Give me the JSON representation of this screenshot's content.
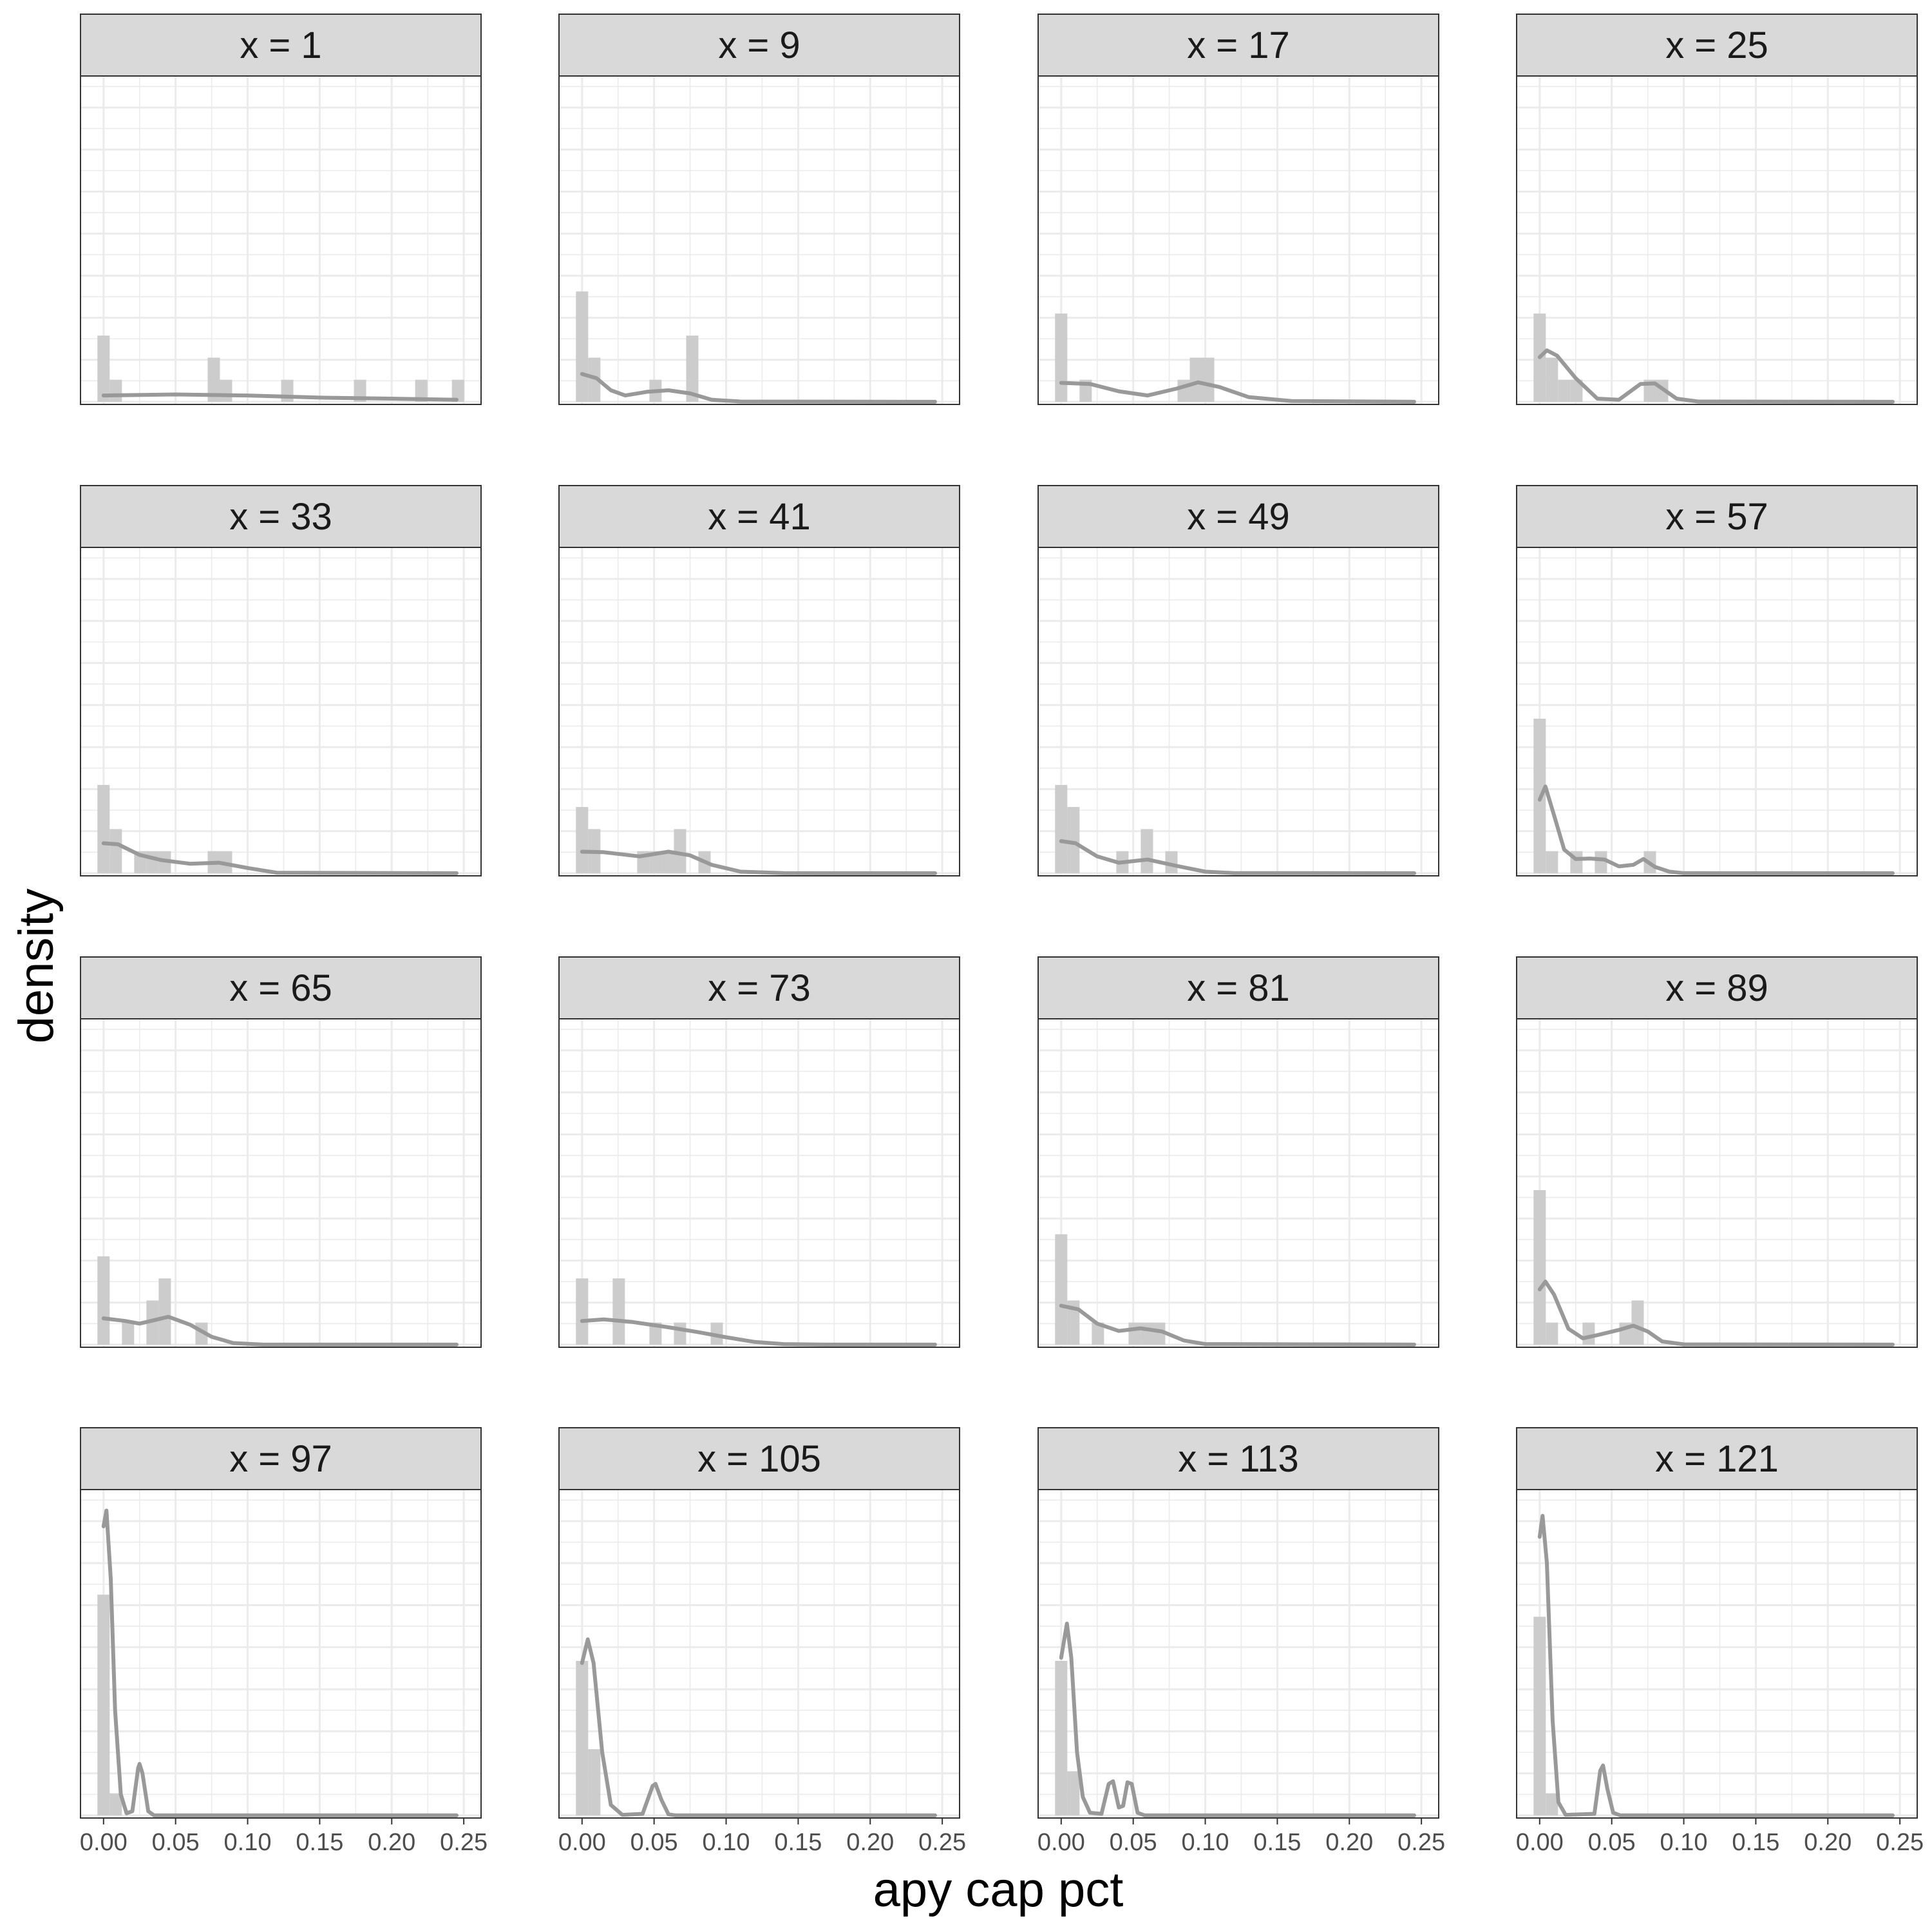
{
  "chart_data": {
    "type": "histogram",
    "xlabel": "apy cap pct",
    "ylabel": "density",
    "xlim": [
      -0.016,
      0.262
    ],
    "ylim": [
      -0.5,
      62
    ],
    "x_ticks": [
      0.0,
      0.05,
      0.1,
      0.15,
      0.2,
      0.25
    ],
    "x_tick_labels": [
      "0.00",
      "0.05",
      "0.10",
      "0.15",
      "0.20",
      "0.25"
    ],
    "y_tick_labels": [],
    "grid": true,
    "bin_width": 0.0085,
    "colors": {
      "bar": "#cccccc",
      "density_line": "#999999",
      "strip_fill": "#d9d9d9",
      "panel_border": "#333333",
      "grid": "#ebebeb"
    },
    "panels": [
      {
        "label": "x = 1",
        "bars": [
          [
            0.0,
            12.6
          ],
          [
            0.0085,
            4.2
          ],
          [
            0.0765,
            8.4
          ],
          [
            0.085,
            4.2
          ],
          [
            0.1275,
            4.2
          ],
          [
            0.178,
            4.2
          ],
          [
            0.2205,
            4.2
          ],
          [
            0.246,
            4.2
          ]
        ],
        "density": [
          [
            0.0,
            1.2
          ],
          [
            0.05,
            1.4
          ],
          [
            0.1,
            1.2
          ],
          [
            0.15,
            0.8
          ],
          [
            0.2,
            0.6
          ],
          [
            0.245,
            0.4
          ]
        ]
      },
      {
        "label": "x = 9",
        "bars": [
          [
            0.0,
            21.0
          ],
          [
            0.0085,
            8.4
          ],
          [
            0.051,
            4.2
          ],
          [
            0.0765,
            12.6
          ]
        ],
        "density": [
          [
            0.0,
            5.3
          ],
          [
            0.01,
            4.5
          ],
          [
            0.02,
            2.2
          ],
          [
            0.03,
            1.2
          ],
          [
            0.045,
            1.9
          ],
          [
            0.06,
            2.2
          ],
          [
            0.075,
            1.6
          ],
          [
            0.09,
            0.4
          ],
          [
            0.11,
            0.05
          ],
          [
            0.245,
            0.0
          ]
        ]
      },
      {
        "label": "x = 17",
        "bars": [
          [
            0.0,
            16.8
          ],
          [
            0.017,
            4.2
          ],
          [
            0.085,
            4.2
          ],
          [
            0.0935,
            8.4
          ],
          [
            0.102,
            8.4
          ]
        ],
        "density": [
          [
            0.0,
            3.6
          ],
          [
            0.02,
            3.4
          ],
          [
            0.04,
            2.0
          ],
          [
            0.06,
            1.2
          ],
          [
            0.08,
            2.5
          ],
          [
            0.095,
            3.7
          ],
          [
            0.11,
            2.8
          ],
          [
            0.13,
            0.9
          ],
          [
            0.16,
            0.15
          ],
          [
            0.245,
            0.0
          ]
        ]
      },
      {
        "label": "x = 25",
        "bars": [
          [
            0.0,
            16.8
          ],
          [
            0.0085,
            8.4
          ],
          [
            0.017,
            4.2
          ],
          [
            0.0255,
            4.2
          ],
          [
            0.0765,
            4.2
          ],
          [
            0.085,
            4.2
          ]
        ],
        "density": [
          [
            0.0,
            8.5
          ],
          [
            0.005,
            9.8
          ],
          [
            0.012,
            8.8
          ],
          [
            0.025,
            4.5
          ],
          [
            0.04,
            0.6
          ],
          [
            0.055,
            0.4
          ],
          [
            0.07,
            3.4
          ],
          [
            0.08,
            3.5
          ],
          [
            0.095,
            0.6
          ],
          [
            0.11,
            0.05
          ],
          [
            0.245,
            0.0
          ]
        ]
      },
      {
        "label": "x = 33",
        "bars": [
          [
            0.0,
            16.8
          ],
          [
            0.0085,
            8.4
          ],
          [
            0.0255,
            4.2
          ],
          [
            0.034,
            4.2
          ],
          [
            0.0425,
            4.2
          ],
          [
            0.0765,
            4.2
          ],
          [
            0.085,
            4.2
          ]
        ],
        "density": [
          [
            0.0,
            5.7
          ],
          [
            0.01,
            5.5
          ],
          [
            0.025,
            3.5
          ],
          [
            0.04,
            2.5
          ],
          [
            0.06,
            1.8
          ],
          [
            0.08,
            2.0
          ],
          [
            0.1,
            1.0
          ],
          [
            0.12,
            0.1
          ],
          [
            0.245,
            0.0
          ]
        ]
      },
      {
        "label": "x = 41",
        "bars": [
          [
            0.0,
            12.6
          ],
          [
            0.0085,
            8.4
          ],
          [
            0.0425,
            4.2
          ],
          [
            0.051,
            4.2
          ],
          [
            0.0595,
            4.2
          ],
          [
            0.068,
            8.4
          ],
          [
            0.085,
            4.2
          ]
        ],
        "density": [
          [
            0.0,
            4.1
          ],
          [
            0.015,
            4.0
          ],
          [
            0.04,
            3.2
          ],
          [
            0.06,
            4.1
          ],
          [
            0.075,
            3.4
          ],
          [
            0.09,
            1.6
          ],
          [
            0.11,
            0.3
          ],
          [
            0.14,
            0.02
          ],
          [
            0.245,
            0.0
          ]
        ]
      },
      {
        "label": "x = 49",
        "bars": [
          [
            0.0,
            16.8
          ],
          [
            0.0085,
            12.6
          ],
          [
            0.0425,
            4.2
          ],
          [
            0.0595,
            8.4
          ],
          [
            0.0765,
            4.2
          ]
        ],
        "density": [
          [
            0.0,
            6.1
          ],
          [
            0.01,
            5.7
          ],
          [
            0.025,
            3.2
          ],
          [
            0.04,
            2.0
          ],
          [
            0.06,
            2.6
          ],
          [
            0.08,
            1.4
          ],
          [
            0.1,
            0.3
          ],
          [
            0.12,
            0.03
          ],
          [
            0.245,
            0.0
          ]
        ]
      },
      {
        "label": "x = 57",
        "bars": [
          [
            0.0,
            29.4
          ],
          [
            0.0085,
            4.2
          ],
          [
            0.0255,
            4.2
          ],
          [
            0.0425,
            4.2
          ],
          [
            0.0765,
            4.2
          ]
        ],
        "density": [
          [
            0.0,
            14.0
          ],
          [
            0.004,
            16.5
          ],
          [
            0.01,
            11.0
          ],
          [
            0.017,
            4.5
          ],
          [
            0.025,
            2.7
          ],
          [
            0.035,
            2.8
          ],
          [
            0.045,
            2.6
          ],
          [
            0.055,
            1.3
          ],
          [
            0.065,
            1.6
          ],
          [
            0.072,
            2.7
          ],
          [
            0.08,
            1.2
          ],
          [
            0.09,
            0.3
          ],
          [
            0.1,
            0.02
          ],
          [
            0.245,
            0.0
          ]
        ]
      },
      {
        "label": "x = 65",
        "bars": [
          [
            0.0,
            16.8
          ],
          [
            0.017,
            4.2
          ],
          [
            0.034,
            8.4
          ],
          [
            0.0425,
            12.6
          ],
          [
            0.068,
            4.2
          ]
        ],
        "density": [
          [
            0.0,
            5.0
          ],
          [
            0.015,
            4.5
          ],
          [
            0.025,
            4.0
          ],
          [
            0.045,
            5.3
          ],
          [
            0.06,
            3.8
          ],
          [
            0.075,
            1.5
          ],
          [
            0.09,
            0.3
          ],
          [
            0.11,
            0.02
          ],
          [
            0.245,
            0.0
          ]
        ]
      },
      {
        "label": "x = 73",
        "bars": [
          [
            0.0,
            12.6
          ],
          [
            0.0255,
            12.6
          ],
          [
            0.051,
            4.2
          ],
          [
            0.068,
            4.2
          ],
          [
            0.0935,
            4.2
          ]
        ],
        "density": [
          [
            0.0,
            4.5
          ],
          [
            0.015,
            4.8
          ],
          [
            0.035,
            4.3
          ],
          [
            0.06,
            3.3
          ],
          [
            0.08,
            2.4
          ],
          [
            0.1,
            1.4
          ],
          [
            0.12,
            0.5
          ],
          [
            0.14,
            0.1
          ],
          [
            0.17,
            0.0
          ],
          [
            0.245,
            0.0
          ]
        ]
      },
      {
        "label": "x = 81",
        "bars": [
          [
            0.0,
            21.0
          ],
          [
            0.0085,
            8.4
          ],
          [
            0.0255,
            4.2
          ],
          [
            0.051,
            4.2
          ],
          [
            0.0595,
            4.2
          ],
          [
            0.068,
            4.2
          ]
        ],
        "density": [
          [
            0.0,
            7.4
          ],
          [
            0.012,
            6.7
          ],
          [
            0.025,
            4.0
          ],
          [
            0.04,
            2.6
          ],
          [
            0.055,
            3.1
          ],
          [
            0.07,
            2.5
          ],
          [
            0.085,
            0.8
          ],
          [
            0.1,
            0.1
          ],
          [
            0.245,
            0.0
          ]
        ]
      },
      {
        "label": "x = 89",
        "bars": [
          [
            0.0,
            29.4
          ],
          [
            0.0085,
            4.2
          ],
          [
            0.034,
            4.2
          ],
          [
            0.0595,
            4.2
          ],
          [
            0.068,
            8.4
          ]
        ],
        "density": [
          [
            0.0,
            10.5
          ],
          [
            0.004,
            12.0
          ],
          [
            0.01,
            9.5
          ],
          [
            0.02,
            3.0
          ],
          [
            0.03,
            1.2
          ],
          [
            0.04,
            1.8
          ],
          [
            0.055,
            2.8
          ],
          [
            0.065,
            3.6
          ],
          [
            0.075,
            2.5
          ],
          [
            0.085,
            0.6
          ],
          [
            0.1,
            0.05
          ],
          [
            0.245,
            0.0
          ]
        ]
      },
      {
        "label": "x = 97",
        "bars": [
          [
            0.0,
            42.0
          ],
          [
            0.0085,
            4.2
          ]
        ],
        "density": [
          [
            0.0,
            55.0
          ],
          [
            0.002,
            58.0
          ],
          [
            0.005,
            45.0
          ],
          [
            0.008,
            20.0
          ],
          [
            0.012,
            4.0
          ],
          [
            0.016,
            0.4
          ],
          [
            0.02,
            0.8
          ],
          [
            0.024,
            9.0
          ],
          [
            0.025,
            9.8
          ],
          [
            0.027,
            8.0
          ],
          [
            0.031,
            0.8
          ],
          [
            0.035,
            0.0
          ],
          [
            0.245,
            0.0
          ]
        ]
      },
      {
        "label": "x = 105",
        "bars": [
          [
            0.0,
            29.4
          ],
          [
            0.0085,
            12.6
          ]
        ],
        "density": [
          [
            0.0,
            29.0
          ],
          [
            0.004,
            33.5
          ],
          [
            0.008,
            29.0
          ],
          [
            0.014,
            12.0
          ],
          [
            0.02,
            2.0
          ],
          [
            0.028,
            0.1
          ],
          [
            0.042,
            0.3
          ],
          [
            0.049,
            5.6
          ],
          [
            0.051,
            6.0
          ],
          [
            0.055,
            3.0
          ],
          [
            0.06,
            0.2
          ],
          [
            0.065,
            0.0
          ],
          [
            0.245,
            0.0
          ]
        ]
      },
      {
        "label": "x = 113",
        "bars": [
          [
            0.0,
            29.4
          ],
          [
            0.0085,
            8.4
          ]
        ],
        "density": [
          [
            0.0,
            30.0
          ],
          [
            0.004,
            36.5
          ],
          [
            0.007,
            30.0
          ],
          [
            0.011,
            12.0
          ],
          [
            0.015,
            3.5
          ],
          [
            0.02,
            0.5
          ],
          [
            0.028,
            0.3
          ],
          [
            0.033,
            6.0
          ],
          [
            0.036,
            6.5
          ],
          [
            0.04,
            1.5
          ],
          [
            0.043,
            1.8
          ],
          [
            0.046,
            6.3
          ],
          [
            0.049,
            6.0
          ],
          [
            0.053,
            0.5
          ],
          [
            0.058,
            0.0
          ],
          [
            0.245,
            0.0
          ]
        ]
      },
      {
        "label": "x = 121",
        "bars": [
          [
            0.0,
            37.8
          ],
          [
            0.0085,
            4.2
          ]
        ],
        "density": [
          [
            0.0,
            53.0
          ],
          [
            0.002,
            57.0
          ],
          [
            0.005,
            48.0
          ],
          [
            0.009,
            18.0
          ],
          [
            0.013,
            2.5
          ],
          [
            0.018,
            0.1
          ],
          [
            0.038,
            0.3
          ],
          [
            0.042,
            8.5
          ],
          [
            0.044,
            9.5
          ],
          [
            0.047,
            5.0
          ],
          [
            0.051,
            0.5
          ],
          [
            0.056,
            0.0
          ],
          [
            0.245,
            0.0
          ]
        ]
      }
    ]
  }
}
